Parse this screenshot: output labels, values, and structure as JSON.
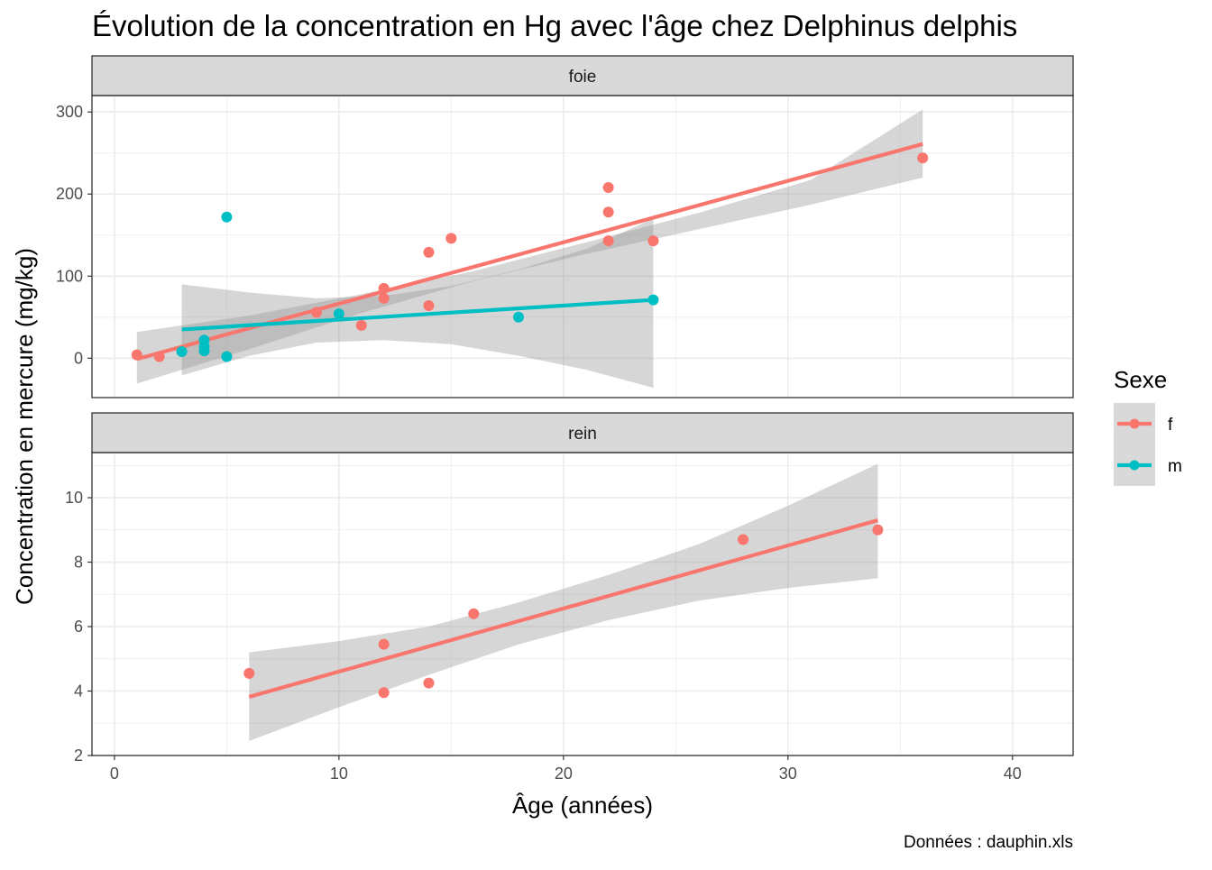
{
  "chart_data": {
    "type": "scatter",
    "title": "Évolution de la concentration en Hg avec l'âge chez Delphinus delphis",
    "xlabel": "Âge (années)",
    "ylabel": "Concentration en mercure (mg/kg)",
    "caption": "Données : dauphin.xls",
    "xlim": [
      -1,
      42.7
    ],
    "x_ticks": [
      0,
      10,
      20,
      30,
      40
    ],
    "x_tick_labels": [
      "0",
      "10",
      "20",
      "30",
      "40"
    ],
    "grid": true,
    "legend": {
      "title": "Sexe",
      "position": "right",
      "entries": [
        {
          "label": "f",
          "color": "#f8766d"
        },
        {
          "label": "m",
          "color": "#00bfc4"
        }
      ]
    },
    "panels": [
      {
        "label": "foie",
        "ylim": [
          -48,
          320
        ],
        "y_ticks": [
          0,
          100,
          200,
          300
        ],
        "y_tick_labels": [
          "0",
          "100",
          "200",
          "300"
        ],
        "series": [
          {
            "name": "f",
            "color": "#f8766d",
            "points": [
              [
                1,
                4
              ],
              [
                2,
                2
              ],
              [
                9,
                56
              ],
              [
                11,
                40
              ],
              [
                12,
                85
              ],
              [
                12,
                73
              ],
              [
                14,
                129
              ],
              [
                14,
                64
              ],
              [
                15,
                146
              ],
              [
                22,
                208
              ],
              [
                22,
                178
              ],
              [
                22,
                143
              ],
              [
                24,
                143
              ],
              [
                36,
                244
              ]
            ],
            "fit": {
              "x": [
                1,
                36
              ],
              "y": [
                -1,
                261
              ]
            },
            "band": {
              "x": [
                1,
                6,
                11,
                16,
                21,
                26,
                31,
                36
              ],
              "lower": [
                -31,
                11,
                55,
                94,
                127,
                157,
                187,
                220
              ],
              "upper": [
                32,
                52,
                78,
                106,
                141,
                177,
                217,
                303
              ]
            }
          },
          {
            "name": "m",
            "color": "#00bfc4",
            "points": [
              [
                3,
                8
              ],
              [
                4,
                22
              ],
              [
                4,
                14
              ],
              [
                4,
                9
              ],
              [
                5,
                172
              ],
              [
                5,
                2
              ],
              [
                10,
                54
              ],
              [
                18,
                50
              ],
              [
                24,
                71
              ]
            ],
            "fit": {
              "x": [
                3,
                24
              ],
              "y": [
                35,
                71
              ]
            },
            "band": {
              "x": [
                3,
                6,
                9,
                12,
                15,
                18,
                21,
                24
              ],
              "lower": [
                -21,
                3,
                19,
                22,
                17,
                3,
                -14,
                -36
              ],
              "upper": [
                90,
                80,
                73,
                76,
                88,
                108,
                133,
                170
              ]
            }
          }
        ]
      },
      {
        "label": "rein",
        "ylim": [
          2,
          11.4
        ],
        "y_ticks": [
          2,
          4,
          6,
          8,
          10
        ],
        "y_tick_labels": [
          "2",
          "4",
          "6",
          "8",
          "10"
        ],
        "series": [
          {
            "name": "f",
            "color": "#f8766d",
            "points": [
              [
                6,
                4.55
              ],
              [
                12,
                5.45
              ],
              [
                12,
                3.95
              ],
              [
                14,
                4.25
              ],
              [
                16,
                6.4
              ],
              [
                28,
                8.7
              ],
              [
                34,
                9.0
              ]
            ],
            "fit": {
              "x": [
                6,
                34
              ],
              "y": [
                3.82,
                9.3
              ]
            },
            "band": {
              "x": [
                6,
                10,
                14,
                18,
                22,
                26,
                30,
                34
              ],
              "lower": [
                2.45,
                3.5,
                4.5,
                5.45,
                6.2,
                6.8,
                7.2,
                7.5
              ],
              "upper": [
                5.2,
                5.55,
                6.0,
                6.75,
                7.6,
                8.55,
                9.75,
                11.05
              ]
            }
          }
        ]
      }
    ]
  }
}
